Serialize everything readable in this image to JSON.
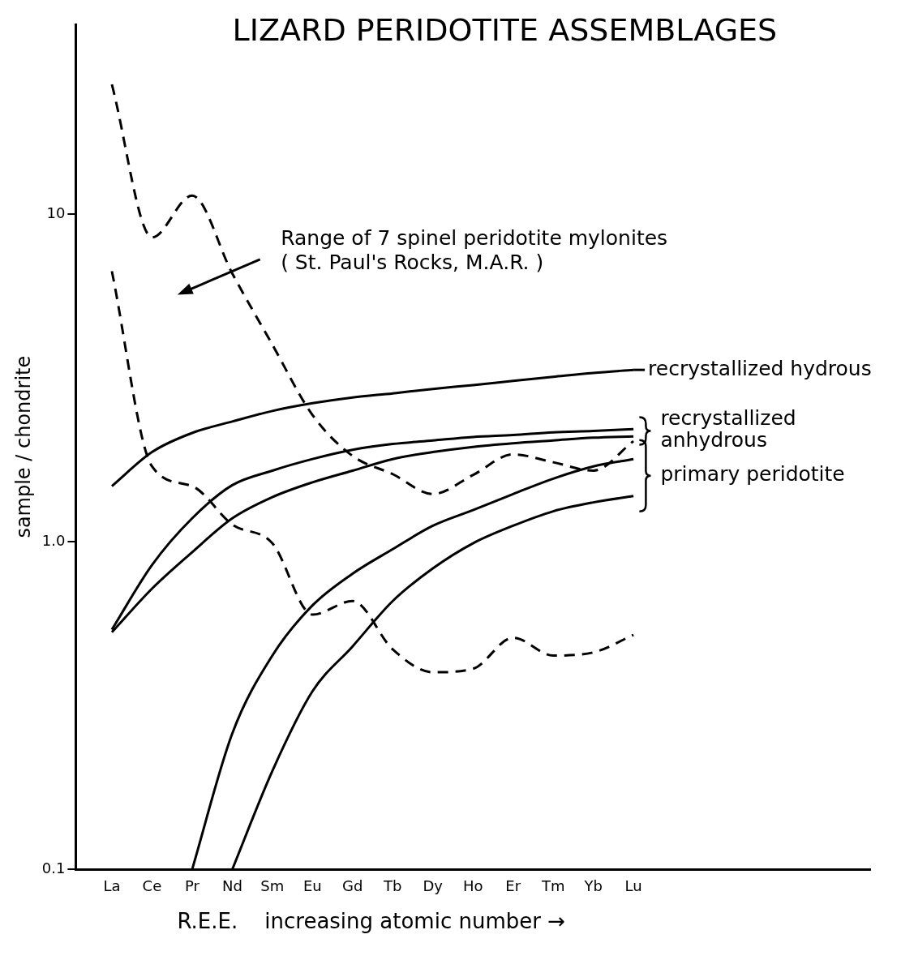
{
  "chart_data": {
    "type": "line",
    "title": "LIZARD PERIDOTITE ASSEMBLAGES",
    "xlabel": "R.E.E.    increasing atomic number →",
    "ylabel": "sample / chondrite",
    "log": "y",
    "categories": [
      "La",
      "Ce",
      "Pr",
      "Nd",
      "Sm",
      "Eu",
      "Gd",
      "Tb",
      "Dy",
      "Ho",
      "Er",
      "Tm",
      "Yb",
      "Lu"
    ],
    "ylim": [
      0.1,
      38
    ],
    "yticks": [
      0.1,
      {
        "value": 1,
        "label": "1.0"
      },
      10
    ],
    "series": [
      {
        "name": "recrystallized hydrous",
        "color": "#000000",
        "line_style": "solid",
        "values": [
          1.48,
          1.88,
          2.15,
          2.33,
          2.51,
          2.65,
          2.76,
          2.84,
          2.93,
          3.01,
          3.1,
          3.19,
          3.28,
          3.35
        ]
      },
      {
        "color": "#000000",
        "line_style": "solid",
        "values": [
          0.54,
          0.85,
          1.18,
          1.49,
          1.65,
          1.79,
          1.91,
          1.99,
          2.04,
          2.09,
          2.12,
          2.16,
          2.18,
          2.21
        ]
      },
      {
        "color": "#000000",
        "line_style": "solid",
        "values": [
          0.53,
          0.72,
          0.93,
          1.18,
          1.37,
          1.52,
          1.65,
          1.79,
          1.88,
          1.95,
          2.0,
          2.04,
          2.08,
          2.1
        ]
      },
      {
        "color": "#000000",
        "line_style": "solid",
        "values": [
          null,
          null,
          0.1,
          0.26,
          0.45,
          0.64,
          0.8,
          0.95,
          1.12,
          1.25,
          1.4,
          1.56,
          1.7,
          1.79
        ]
      },
      {
        "color": "#000000",
        "line_style": "solid",
        "values": [
          null,
          null,
          null,
          0.1,
          0.2,
          0.35,
          0.48,
          0.66,
          0.83,
          0.99,
          1.12,
          1.24,
          1.32,
          1.38
        ]
      },
      {
        "color": "#000000",
        "line_style": "dashed",
        "values": [
          24.9,
          8.5,
          11.4,
          6.6,
          4.0,
          2.44,
          1.83,
          1.61,
          1.4,
          1.6,
          1.85,
          1.75,
          1.65,
          2.03
        ]
      },
      {
        "color": "#000000",
        "line_style": "dashed",
        "values": [
          6.7,
          1.7,
          1.48,
          1.13,
          0.99,
          0.6,
          0.66,
          0.47,
          0.4,
          0.41,
          0.51,
          0.45,
          0.46,
          0.52
        ]
      }
    ],
    "annotations": [
      "Range of 7 spinel peridotite mylonites\n( St. Paul's Rocks, M.A.R. )",
      "recrystallized\nanhydrous",
      "primary peridotite"
    ]
  }
}
